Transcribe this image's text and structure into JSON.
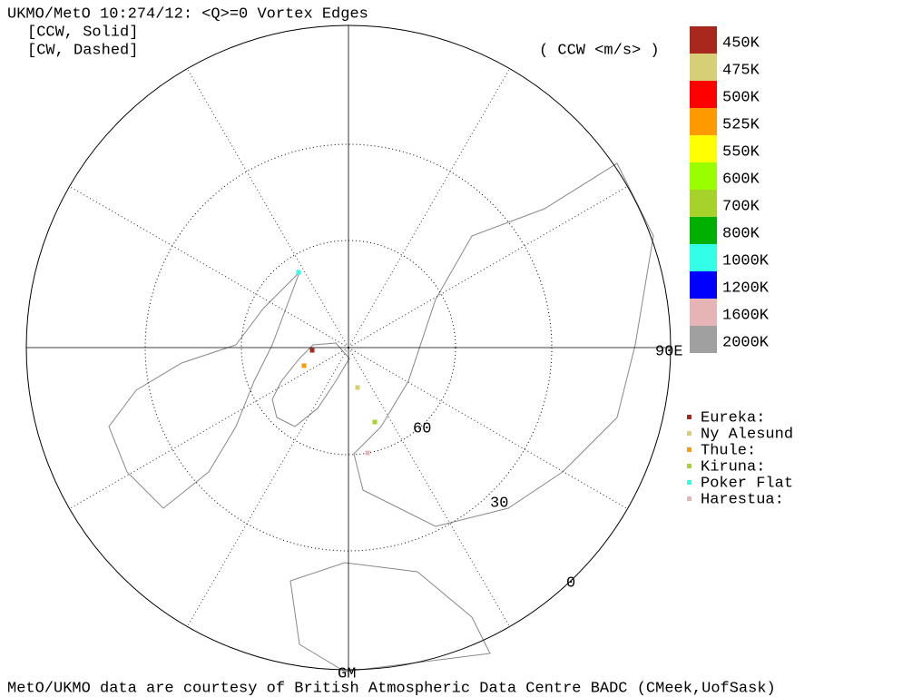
{
  "header": {
    "title": "UKMO/MetO 10:274/12: <Q>=0 Vortex Edges",
    "lines": [
      "[CCW, Solid]",
      "[CW, Dashed]"
    ],
    "units": "( CCW <m/s> )"
  },
  "color_bar": [
    {
      "label": "450K",
      "color": "#a8281e"
    },
    {
      "label": "475K",
      "color": "#d7cf78"
    },
    {
      "label": "500K",
      "color": "#ff0000"
    },
    {
      "label": "525K",
      "color": "#ff9900"
    },
    {
      "label": "550K",
      "color": "#ffff00"
    },
    {
      "label": "600K",
      "color": "#99ff00"
    },
    {
      "label": "700K",
      "color": "#a6d22a"
    },
    {
      "label": "800K",
      "color": "#00b000"
    },
    {
      "label": "1000K",
      "color": "#33ffe6"
    },
    {
      "label": "1200K",
      "color": "#0000ff"
    },
    {
      "label": "1600K",
      "color": "#e6b4b4"
    },
    {
      "label": "2000K",
      "color": "#a0a0a0"
    }
  ],
  "stations": [
    {
      "name": "Eureka:",
      "color": "#a8281e"
    },
    {
      "name": "Ny Alesund",
      "color": "#d7cf78"
    },
    {
      "name": "Thule:",
      "color": "#ff9900"
    },
    {
      "name": "Kiruna:",
      "color": "#a6d22a"
    },
    {
      "name": "Poker Flat",
      "color": "#33ffe6"
    },
    {
      "name": "Harestua:",
      "color": "#e6b4b4"
    }
  ],
  "map_labels": {
    "east": "90E",
    "lat60": "60",
    "lat30": "30",
    "lat0": "0",
    "gm": "GM"
  },
  "footer": "MetO/UKMO data are courtesy of British Atmospheric Data Centre BADC (CMeek,UofSask)"
}
